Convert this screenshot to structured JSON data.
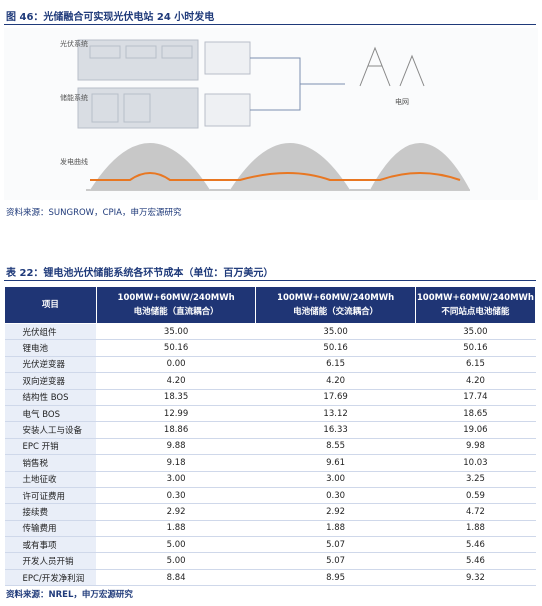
{
  "figure": {
    "title": "图 46：光储融合可实现光伏电站 24 小时发电",
    "labels": {
      "pv": "光伏系统",
      "storage": "储能系统",
      "grid": "电网",
      "curve": "发电曲线"
    },
    "source": "资料来源：SUNGROW，CPIA，申万宏源研究"
  },
  "table": {
    "title": "表 22：锂电池光伏储能系统各环节成本（单位：百万美元）",
    "header": [
      "项目",
      [
        "100MW+60MW/240MWh",
        "电池储能（直流耦合）"
      ],
      [
        "100MW+60MW/240MWh",
        "电池储能（交流耦合）"
      ],
      [
        "100MW+60MW/240MWh",
        "不同站点电池储能"
      ]
    ],
    "rows": [
      [
        "光伏组件",
        "35.00",
        "35.00",
        "35.00"
      ],
      [
        "锂电池",
        "50.16",
        "50.16",
        "50.16"
      ],
      [
        "光伏逆变器",
        "0.00",
        "6.15",
        "6.15"
      ],
      [
        "双向逆变器",
        "4.20",
        "4.20",
        "4.20"
      ],
      [
        "结构性 BOS",
        "18.35",
        "17.69",
        "17.74"
      ],
      [
        "电气 BOS",
        "12.99",
        "13.12",
        "18.65"
      ],
      [
        "安装人工与设备",
        "18.86",
        "16.33",
        "19.06"
      ],
      [
        "EPC 开销",
        "9.88",
        "8.55",
        "9.98"
      ],
      [
        "销售税",
        "9.18",
        "9.61",
        "10.03"
      ],
      [
        "土地征收",
        "3.00",
        "3.00",
        "3.25"
      ],
      [
        "许可证费用",
        "0.30",
        "0.30",
        "0.59"
      ],
      [
        "接续费",
        "2.92",
        "2.92",
        "4.72"
      ],
      [
        "传输费用",
        "1.88",
        "1.88",
        "1.88"
      ],
      [
        "或有事项",
        "5.00",
        "5.07",
        "5.46"
      ],
      [
        "开发人员开销",
        "5.00",
        "5.07",
        "5.46"
      ],
      [
        "EPC/开发净利润",
        "8.84",
        "8.95",
        "9.32"
      ]
    ],
    "source": "资料来源：NREL，申万宏源研究"
  }
}
